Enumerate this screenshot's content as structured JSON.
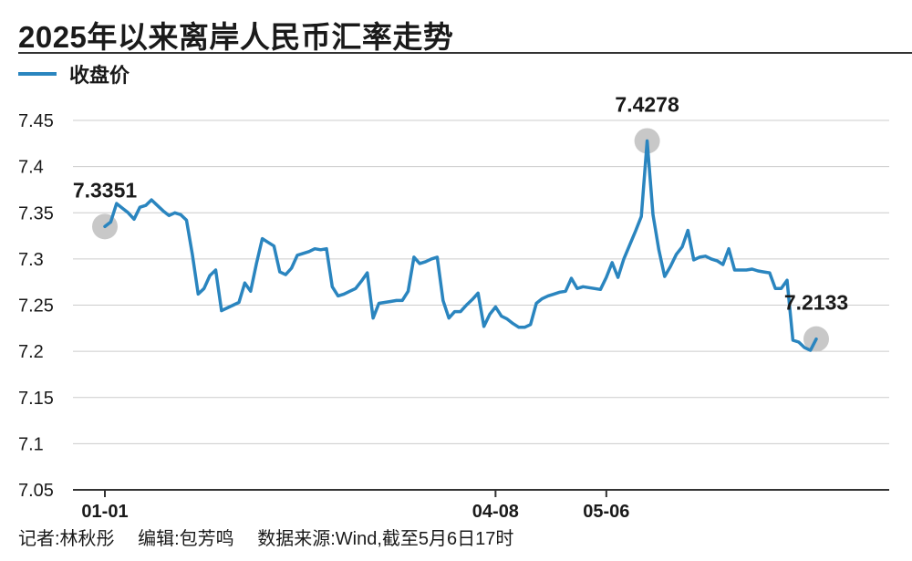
{
  "title": "2025年以来离岸人民币汇率走势",
  "legend": {
    "label": "收盘价"
  },
  "colors": {
    "line": "#2a85bf",
    "marker": "#c8c8c8",
    "grid": "#cccccc",
    "axis": "#333333"
  },
  "footer": {
    "reporter": "记者:林秋彤",
    "editor": "编辑:包芳鸣",
    "source": "数据来源:Wind,截至5月6日17时"
  },
  "chart_data": {
    "type": "line",
    "title": "2025年以来离岸人民币汇率走势",
    "xlabel": "",
    "ylabel": "",
    "ylim": [
      7.05,
      7.45
    ],
    "yticks": [
      7.05,
      7.1,
      7.15,
      7.2,
      7.25,
      7.3,
      7.35,
      7.4,
      7.45
    ],
    "ytick_labels": [
      "7.05",
      "7.1",
      "7.15",
      "7.2",
      "7.25",
      "7.3",
      "7.35",
      "7.4",
      "7.45"
    ],
    "xticks": [
      {
        "index": 0,
        "label": "01-01"
      },
      {
        "index": 67,
        "label": "04-08"
      },
      {
        "index": 86,
        "label": "05-06"
      }
    ],
    "grid": true,
    "legend_position": "top-left",
    "series": [
      {
        "name": "收盘价",
        "values": [
          7.3351,
          7.34,
          7.36,
          7.355,
          7.35,
          7.343,
          7.356,
          7.358,
          7.364,
          7.358,
          7.352,
          7.347,
          7.35,
          7.348,
          7.342,
          7.305,
          7.262,
          7.268,
          7.282,
          7.288,
          7.244,
          7.247,
          7.25,
          7.253,
          7.274,
          7.265,
          7.295,
          7.322,
          7.318,
          7.314,
          7.286,
          7.283,
          7.29,
          7.304,
          7.306,
          7.308,
          7.311,
          7.31,
          7.311,
          7.27,
          7.26,
          7.262,
          7.265,
          7.268,
          7.276,
          7.285,
          7.236,
          7.252,
          7.253,
          7.254,
          7.255,
          7.255,
          7.265,
          7.302,
          7.295,
          7.297,
          7.3,
          7.302,
          7.255,
          7.236,
          7.243,
          7.243,
          7.25,
          7.256,
          7.263,
          7.227,
          7.24,
          7.248,
          7.238,
          7.235,
          7.23,
          7.226,
          7.226,
          7.229,
          7.252,
          7.257,
          7.26,
          7.262,
          7.264,
          7.265,
          7.279,
          7.268,
          7.27,
          7.269,
          7.268,
          7.267,
          7.28,
          7.296,
          7.28,
          7.3,
          7.315,
          7.33,
          7.346,
          7.4278,
          7.348,
          7.31,
          7.281,
          7.292,
          7.305,
          7.313,
          7.331,
          7.299,
          7.302,
          7.303,
          7.3,
          7.298,
          7.294,
          7.311,
          7.288,
          7.288,
          7.288,
          7.289,
          7.287,
          7.286,
          7.285,
          7.268,
          7.268,
          7.277,
          7.212,
          7.21,
          7.204,
          7.201,
          7.2133
        ]
      }
    ],
    "annotations": [
      {
        "index": 0,
        "value": 7.3351,
        "label": "7.3351"
      },
      {
        "index": 93,
        "value": 7.4278,
        "label": "7.4278"
      },
      {
        "index": 122,
        "value": 7.2133,
        "label": "7.2133"
      }
    ]
  }
}
